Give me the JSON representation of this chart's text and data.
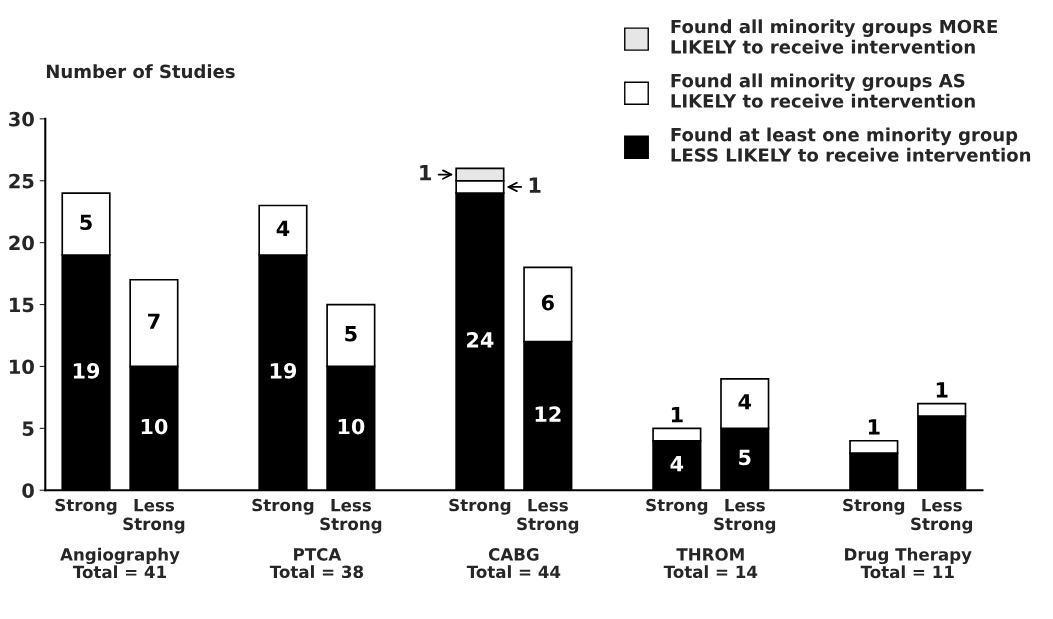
{
  "chart_data": {
    "type": "bar",
    "stacked": true,
    "ylabel": "Number of Studies",
    "categories": [
      "Strong",
      "Less\nStrong",
      "Strong",
      "Less\nStrong",
      "Strong",
      "Less\nStrong",
      "Strong",
      "Less\nStrong",
      "Strong",
      "Less\nStrong"
    ],
    "series": [
      {
        "name": "Found at least one minority group\nLESS LIKELY to receive intervention",
        "color": "#000000",
        "values": [
          19,
          10,
          19,
          10,
          24,
          12,
          4,
          5,
          3,
          6
        ],
        "value_labels": [
          "19",
          "10",
          "19",
          "10",
          "24",
          "12",
          "4",
          "5",
          null,
          null
        ]
      },
      {
        "name": "Found all minority groups AS\nLIKELY to receive intervention",
        "color": "#ffffff",
        "values": [
          5,
          7,
          4,
          5,
          1,
          6,
          1,
          4,
          1,
          1
        ],
        "value_labels": [
          "5",
          "7",
          "4",
          "5",
          "1",
          "6",
          "1",
          "4",
          "1",
          "1"
        ]
      },
      {
        "name": "Found all minority groups MORE\nLIKELY to receive intervention",
        "color": "#e6e6e6",
        "values": [
          null,
          null,
          null,
          null,
          1,
          null,
          null,
          null,
          null,
          null
        ],
        "value_labels": [
          null,
          null,
          null,
          null,
          "1",
          null,
          null,
          null,
          null,
          null
        ]
      }
    ],
    "annotations": [
      "Angiography\nTotal = 41",
      "PTCA\nTotal = 38",
      "CABG\nTotal = 44",
      "THROM\nTotal = 14",
      "Drug Therapy\nTotal = 11"
    ],
    "ylim": [
      0,
      30
    ],
    "yticks": [
      0,
      5,
      10,
      15,
      20,
      25,
      30
    ],
    "grid": false,
    "legend": "top right"
  }
}
